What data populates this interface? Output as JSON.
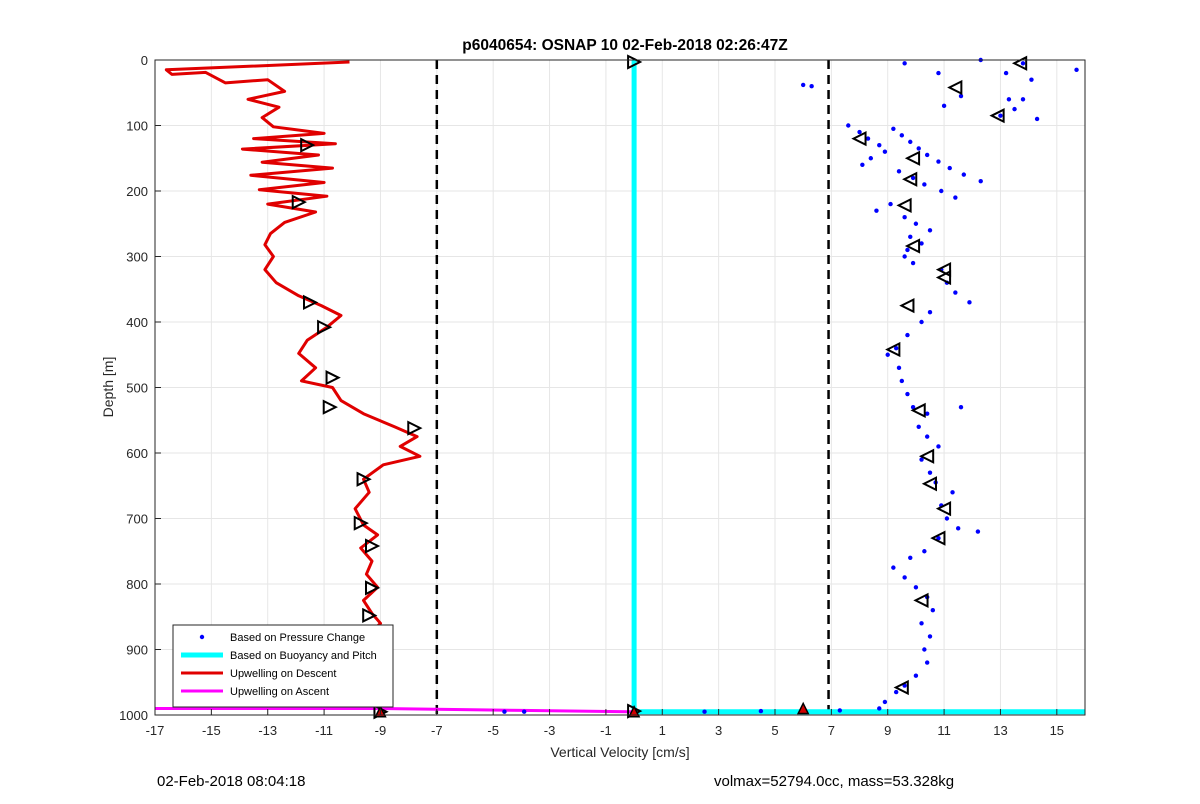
{
  "colors": {
    "background": "#ffffff",
    "grid": "#e6e6e6",
    "axis": "#262626",
    "pressure_points": "#0000ff",
    "buoyancy_line": "#00ffff",
    "descent_line": "#e00000",
    "ascent_line": "#ff00ff",
    "dashed_lines": "#000000"
  },
  "footer": {
    "timestamp": "02-Feb-2018 08:04:18",
    "summary": "volmax=52794.0cc, mass=53.328kg"
  },
  "chart_data": {
    "type": "scatter",
    "title": "p6040654: OSNAP 10 02-Feb-2018 02:26:47Z",
    "xlabel": "Vertical Velocity [cm/s]",
    "ylabel": "Depth [m]",
    "xlim": [
      -17,
      16
    ],
    "ylim": [
      0,
      1000
    ],
    "y_reversed": true,
    "grid": true,
    "x_ticks": [
      -17,
      -15,
      -13,
      -11,
      -9,
      -7,
      -5,
      -3,
      -1,
      1,
      3,
      5,
      7,
      9,
      11,
      13,
      15
    ],
    "y_ticks": [
      0,
      100,
      200,
      300,
      400,
      500,
      600,
      700,
      800,
      900,
      1000
    ],
    "legend": {
      "location": "bottom-left",
      "entries": [
        "Based on Pressure Change",
        "Based on Buoyancy and Pitch",
        "Upwelling on Descent",
        "Upwelling on Ascent"
      ]
    },
    "vertical_dashed_lines_x": [
      -7,
      6.9
    ],
    "series": [
      {
        "name": "Based on Pressure Change",
        "style": "points",
        "points": [
          [
            6.0,
            38
          ],
          [
            6.3,
            40
          ],
          [
            9.6,
            5
          ],
          [
            10.8,
            20
          ],
          [
            12.3,
            0
          ],
          [
            13.2,
            20
          ],
          [
            13.8,
            5
          ],
          [
            14.1,
            30
          ],
          [
            15.7,
            15
          ],
          [
            13.3,
            60
          ],
          [
            13.5,
            75
          ],
          [
            13.8,
            60
          ],
          [
            13.0,
            85
          ],
          [
            14.3,
            90
          ],
          [
            11.6,
            55
          ],
          [
            11.0,
            70
          ],
          [
            7.6,
            100
          ],
          [
            8.0,
            110
          ],
          [
            8.3,
            120
          ],
          [
            8.7,
            130
          ],
          [
            9.2,
            105
          ],
          [
            9.5,
            115
          ],
          [
            9.8,
            125
          ],
          [
            10.1,
            135
          ],
          [
            10.4,
            145
          ],
          [
            10.8,
            155
          ],
          [
            11.2,
            165
          ],
          [
            11.7,
            175
          ],
          [
            12.3,
            185
          ],
          [
            8.9,
            140
          ],
          [
            8.4,
            150
          ],
          [
            8.1,
            160
          ],
          [
            9.4,
            170
          ],
          [
            9.9,
            180
          ],
          [
            10.3,
            190
          ],
          [
            10.9,
            200
          ],
          [
            11.4,
            210
          ],
          [
            9.1,
            220
          ],
          [
            8.6,
            230
          ],
          [
            9.6,
            240
          ],
          [
            10.0,
            250
          ],
          [
            10.5,
            260
          ],
          [
            9.8,
            270
          ],
          [
            10.2,
            280
          ],
          [
            9.7,
            290
          ],
          [
            9.6,
            300
          ],
          [
            9.9,
            310
          ],
          [
            10.9,
            320
          ],
          [
            11.1,
            340
          ],
          [
            11.4,
            355
          ],
          [
            11.9,
            370
          ],
          [
            10.5,
            385
          ],
          [
            10.2,
            400
          ],
          [
            9.7,
            420
          ],
          [
            9.3,
            440
          ],
          [
            9.0,
            450
          ],
          [
            9.4,
            470
          ],
          [
            9.5,
            490
          ],
          [
            9.7,
            510
          ],
          [
            9.9,
            530
          ],
          [
            10.4,
            540
          ],
          [
            11.6,
            530
          ],
          [
            10.1,
            560
          ],
          [
            10.4,
            575
          ],
          [
            10.8,
            590
          ],
          [
            10.2,
            610
          ],
          [
            10.5,
            630
          ],
          [
            10.7,
            645
          ],
          [
            11.3,
            660
          ],
          [
            10.9,
            680
          ],
          [
            11.1,
            700
          ],
          [
            11.5,
            715
          ],
          [
            12.2,
            720
          ],
          [
            10.8,
            730
          ],
          [
            10.3,
            750
          ],
          [
            9.8,
            760
          ],
          [
            9.2,
            775
          ],
          [
            9.6,
            790
          ],
          [
            10.0,
            805
          ],
          [
            10.4,
            820
          ],
          [
            10.6,
            840
          ],
          [
            10.2,
            860
          ],
          [
            10.5,
            880
          ],
          [
            10.3,
            900
          ],
          [
            10.4,
            920
          ],
          [
            10.0,
            940
          ],
          [
            9.6,
            955
          ],
          [
            9.3,
            965
          ],
          [
            8.9,
            980
          ],
          [
            8.7,
            990
          ],
          [
            7.3,
            993
          ],
          [
            4.5,
            994
          ],
          [
            2.5,
            995
          ],
          [
            -4.6,
            995
          ],
          [
            -3.9,
            995
          ]
        ]
      },
      {
        "name": "Based on Buoyancy and Pitch",
        "style": "line",
        "points": [
          [
            0,
            0
          ],
          [
            0,
            995
          ],
          [
            16,
            995
          ]
        ]
      },
      {
        "name": "Upwelling on Descent",
        "style": "line",
        "points": [
          [
            -10.1,
            3
          ],
          [
            -16.6,
            15
          ],
          [
            -16.4,
            22
          ],
          [
            -15.2,
            19
          ],
          [
            -14.5,
            35
          ],
          [
            -13.0,
            30
          ],
          [
            -12.4,
            48
          ],
          [
            -13.7,
            60
          ],
          [
            -12.6,
            72
          ],
          [
            -13.2,
            88
          ],
          [
            -12.8,
            102
          ],
          [
            -11.0,
            112
          ],
          [
            -13.5,
            120
          ],
          [
            -10.6,
            128
          ],
          [
            -13.9,
            136
          ],
          [
            -11.2,
            145
          ],
          [
            -13.2,
            156
          ],
          [
            -10.7,
            165
          ],
          [
            -13.6,
            176
          ],
          [
            -11.0,
            187
          ],
          [
            -13.3,
            198
          ],
          [
            -10.9,
            208
          ],
          [
            -13.0,
            220
          ],
          [
            -11.3,
            232
          ],
          [
            -12.4,
            248
          ],
          [
            -12.9,
            265
          ],
          [
            -13.1,
            282
          ],
          [
            -12.8,
            300
          ],
          [
            -13.1,
            320
          ],
          [
            -12.7,
            340
          ],
          [
            -11.9,
            360
          ],
          [
            -11.1,
            375
          ],
          [
            -10.4,
            390
          ],
          [
            -10.9,
            408
          ],
          [
            -11.6,
            428
          ],
          [
            -11.9,
            448
          ],
          [
            -11.3,
            470
          ],
          [
            -11.8,
            490
          ],
          [
            -10.7,
            500
          ],
          [
            -10.4,
            520
          ],
          [
            -9.6,
            540
          ],
          [
            -8.5,
            560
          ],
          [
            -7.7,
            575
          ],
          [
            -8.3,
            590
          ],
          [
            -7.6,
            605
          ],
          [
            -8.9,
            618
          ],
          [
            -9.6,
            640
          ],
          [
            -9.4,
            660
          ],
          [
            -9.9,
            685
          ],
          [
            -9.6,
            710
          ],
          [
            -9.1,
            725
          ],
          [
            -9.7,
            745
          ],
          [
            -9.3,
            765
          ],
          [
            -9.5,
            785
          ],
          [
            -9.1,
            805
          ],
          [
            -9.6,
            825
          ],
          [
            -9.3,
            845
          ],
          [
            -9.0,
            860
          ],
          [
            -9.5,
            880
          ],
          [
            -9.1,
            900
          ],
          [
            -9.4,
            920
          ],
          [
            -9.2,
            940
          ],
          [
            -9.0,
            955
          ],
          [
            -9.2,
            975
          ],
          [
            -8.9,
            988
          ],
          [
            -9.0,
            995
          ]
        ]
      },
      {
        "name": "Upwelling on Ascent",
        "style": "line",
        "points": [
          [
            -17,
            990
          ],
          [
            -9,
            990
          ],
          [
            -4,
            993
          ],
          [
            -0.2,
            995
          ],
          [
            0,
            995
          ]
        ]
      }
    ],
    "descent_markers": [
      [
        0.0,
        3
      ],
      [
        -11.6,
        130
      ],
      [
        -11.9,
        217
      ],
      [
        -11.5,
        370
      ],
      [
        -11.0,
        408
      ],
      [
        -10.7,
        485
      ],
      [
        -10.8,
        530
      ],
      [
        -7.8,
        562
      ],
      [
        -9.6,
        640
      ],
      [
        -9.7,
        707
      ],
      [
        -9.3,
        742
      ],
      [
        -9.3,
        806
      ],
      [
        -9.4,
        848
      ],
      [
        -9.4,
        884
      ],
      [
        -9.0,
        995
      ],
      [
        0.0,
        994
      ]
    ],
    "ascent_markers": [
      [
        13.7,
        5
      ],
      [
        11.4,
        42
      ],
      [
        12.9,
        85
      ],
      [
        8.0,
        120
      ],
      [
        9.9,
        150
      ],
      [
        9.8,
        182
      ],
      [
        9.6,
        222
      ],
      [
        9.9,
        284
      ],
      [
        11.0,
        320
      ],
      [
        11.0,
        332
      ],
      [
        9.7,
        375
      ],
      [
        9.2,
        442
      ],
      [
        10.1,
        535
      ],
      [
        10.4,
        605
      ],
      [
        10.5,
        647
      ],
      [
        11.0,
        685
      ],
      [
        10.8,
        730
      ],
      [
        10.2,
        825
      ],
      [
        9.5,
        958
      ]
    ],
    "red_triangle_markers": [
      [
        -9.0,
        995
      ],
      [
        6.0,
        990
      ],
      [
        0.0,
        995
      ]
    ]
  }
}
